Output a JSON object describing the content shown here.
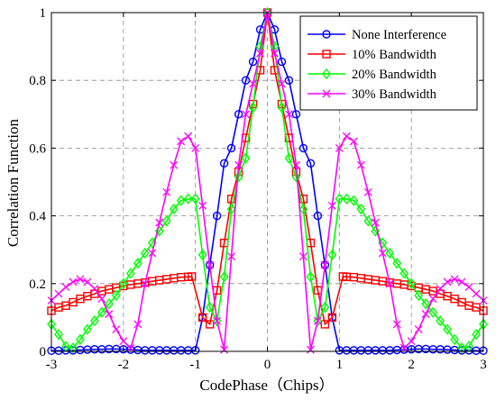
{
  "chart_data": {
    "type": "line",
    "xlabel": "CodePhase（Chips）",
    "ylabel": "Correlation Function",
    "xlim": [
      -3,
      3
    ],
    "ylim": [
      0,
      1
    ],
    "xticks": [
      "-3",
      "-2",
      "-1",
      "0",
      "1",
      "2",
      "3"
    ],
    "yticks": [
      "0",
      "0.2",
      "0.4",
      "0.6",
      "0.8",
      "1"
    ],
    "grid": true,
    "legend_position": "top-right",
    "series": [
      {
        "name": "None Interference",
        "color": "#0000ff",
        "marker": "circle",
        "x": [
          -3,
          -2.9,
          -2.8,
          -2.7,
          -2.6,
          -2.5,
          -2.4,
          -2.3,
          -2.2,
          -2.1,
          -2,
          -1.9,
          -1.8,
          -1.7,
          -1.6,
          -1.5,
          -1.4,
          -1.3,
          -1.2,
          -1.1,
          -1,
          -0.9,
          -0.8,
          -0.7,
          -0.6,
          -0.5,
          -0.4,
          -0.3,
          -0.2,
          -0.1,
          0,
          0.1,
          0.2,
          0.3,
          0.4,
          0.5,
          0.6,
          0.7,
          0.8,
          0.9,
          1,
          1.1,
          1.2,
          1.3,
          1.4,
          1.5,
          1.6,
          1.7,
          1.8,
          1.9,
          2,
          2.1,
          2.2,
          2.3,
          2.4,
          2.5,
          2.6,
          2.7,
          2.8,
          2.9,
          3
        ],
        "y": [
          0.002,
          0.002,
          0.003,
          0.003,
          0.004,
          0.005,
          0.006,
          0.006,
          0.007,
          0.007,
          0.006,
          0.005,
          0.004,
          0.003,
          0.003,
          0.003,
          0.003,
          0.003,
          0.003,
          0.003,
          0.003,
          0.1,
          0.255,
          0.4,
          0.555,
          0.6,
          0.7,
          0.8,
          0.855,
          0.95,
          1,
          0.95,
          0.855,
          0.8,
          0.7,
          0.6,
          0.555,
          0.4,
          0.255,
          0.1,
          0.003,
          0.003,
          0.003,
          0.003,
          0.003,
          0.003,
          0.003,
          0.003,
          0.004,
          0.005,
          0.006,
          0.007,
          0.007,
          0.006,
          0.006,
          0.005,
          0.004,
          0.003,
          0.003,
          0.002,
          0.002
        ]
      },
      {
        "name": "10% Bandwidth",
        "color": "#ff0000",
        "marker": "square",
        "x": [
          -3,
          -2.9,
          -2.8,
          -2.7,
          -2.6,
          -2.5,
          -2.4,
          -2.3,
          -2.2,
          -2.1,
          -2,
          -1.9,
          -1.8,
          -1.7,
          -1.6,
          -1.5,
          -1.4,
          -1.3,
          -1.2,
          -1.1,
          -1.05,
          -0.9,
          -0.8,
          -0.7,
          -0.6,
          -0.5,
          -0.4,
          -0.3,
          -0.2,
          -0.1,
          0,
          0.1,
          0.2,
          0.3,
          0.4,
          0.5,
          0.6,
          0.7,
          0.8,
          0.9,
          1.05,
          1.1,
          1.2,
          1.3,
          1.4,
          1.5,
          1.6,
          1.7,
          1.8,
          1.9,
          2,
          2.1,
          2.2,
          2.3,
          2.4,
          2.5,
          2.6,
          2.7,
          2.8,
          2.9,
          3
        ],
        "y": [
          0.12,
          0.13,
          0.135,
          0.145,
          0.155,
          0.163,
          0.17,
          0.178,
          0.183,
          0.188,
          0.193,
          0.197,
          0.2,
          0.203,
          0.207,
          0.21,
          0.213,
          0.216,
          0.219,
          0.22,
          0.221,
          0.1,
          0.08,
          0.18,
          0.32,
          0.45,
          0.53,
          0.63,
          0.73,
          0.83,
          1,
          0.83,
          0.73,
          0.63,
          0.53,
          0.45,
          0.32,
          0.18,
          0.08,
          0.1,
          0.221,
          0.22,
          0.219,
          0.216,
          0.213,
          0.21,
          0.207,
          0.203,
          0.2,
          0.197,
          0.193,
          0.188,
          0.183,
          0.178,
          0.17,
          0.163,
          0.155,
          0.145,
          0.135,
          0.13,
          0.12
        ]
      },
      {
        "name": "20% Bandwidth",
        "color": "#00ff00",
        "marker": "diamond",
        "x": [
          -3,
          -2.9,
          -2.8,
          -2.7,
          -2.6,
          -2.5,
          -2.4,
          -2.3,
          -2.2,
          -2.1,
          -2,
          -1.9,
          -1.8,
          -1.7,
          -1.6,
          -1.5,
          -1.4,
          -1.3,
          -1.2,
          -1.1,
          -1,
          -0.9,
          -0.8,
          -0.7,
          -0.6,
          -0.5,
          -0.4,
          -0.3,
          -0.2,
          -0.1,
          0,
          0.1,
          0.2,
          0.3,
          0.4,
          0.5,
          0.6,
          0.7,
          0.8,
          0.9,
          1,
          1.1,
          1.2,
          1.3,
          1.4,
          1.5,
          1.6,
          1.7,
          1.8,
          1.9,
          2,
          2.1,
          2.2,
          2.3,
          2.4,
          2.5,
          2.6,
          2.7,
          2.8,
          2.9,
          3
        ],
        "y": [
          0.08,
          0.05,
          0.015,
          0.01,
          0.035,
          0.065,
          0.09,
          0.115,
          0.14,
          0.165,
          0.2,
          0.23,
          0.26,
          0.29,
          0.32,
          0.355,
          0.385,
          0.42,
          0.445,
          0.45,
          0.45,
          0.285,
          0.13,
          0.09,
          0.22,
          0.42,
          0.515,
          0.57,
          0.72,
          0.9,
          1,
          0.9,
          0.72,
          0.57,
          0.515,
          0.42,
          0.22,
          0.09,
          0.13,
          0.285,
          0.45,
          0.45,
          0.445,
          0.42,
          0.385,
          0.355,
          0.32,
          0.29,
          0.26,
          0.23,
          0.2,
          0.165,
          0.14,
          0.115,
          0.09,
          0.065,
          0.035,
          0.01,
          0.015,
          0.05,
          0.08
        ]
      },
      {
        "name": "30% Bandwidth",
        "color": "#ff00ff",
        "marker": "x",
        "x": [
          -3,
          -2.9,
          -2.8,
          -2.7,
          -2.6,
          -2.5,
          -2.4,
          -2.3,
          -2.2,
          -2.1,
          -2,
          -1.9,
          -1.8,
          -1.7,
          -1.6,
          -1.5,
          -1.4,
          -1.3,
          -1.2,
          -1.1,
          -1,
          -0.9,
          -0.8,
          -0.7,
          -0.6,
          -0.5,
          -0.4,
          -0.3,
          -0.2,
          -0.1,
          0,
          0.1,
          0.2,
          0.3,
          0.4,
          0.5,
          0.6,
          0.7,
          0.8,
          0.9,
          1,
          1.1,
          1.2,
          1.3,
          1.4,
          1.5,
          1.6,
          1.7,
          1.8,
          1.9,
          2,
          2.1,
          2.2,
          2.3,
          2.4,
          2.5,
          2.6,
          2.7,
          2.8,
          2.9,
          3
        ],
        "y": [
          0.15,
          0.17,
          0.19,
          0.205,
          0.213,
          0.205,
          0.185,
          0.155,
          0.11,
          0.065,
          0.03,
          0.01,
          0.08,
          0.2,
          0.29,
          0.38,
          0.47,
          0.55,
          0.62,
          0.635,
          0.6,
          0.43,
          0.255,
          0.09,
          0.005,
          0.28,
          0.55,
          0.7,
          0.79,
          0.88,
          1,
          0.88,
          0.79,
          0.7,
          0.55,
          0.28,
          0.005,
          0.09,
          0.255,
          0.43,
          0.6,
          0.635,
          0.62,
          0.55,
          0.47,
          0.38,
          0.29,
          0.2,
          0.08,
          0.01,
          0.03,
          0.065,
          0.11,
          0.155,
          0.185,
          0.205,
          0.213,
          0.205,
          0.19,
          0.17,
          0.15
        ]
      }
    ]
  }
}
